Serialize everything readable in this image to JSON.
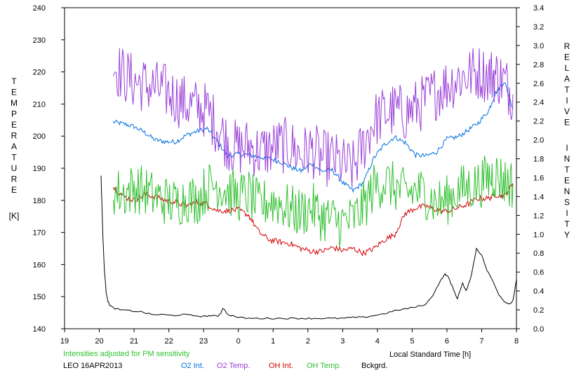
{
  "chart_data": {
    "type": "line",
    "y_left_label_letters": [
      "T",
      "E",
      "M",
      "P",
      "E",
      "R",
      "A",
      "T",
      "U",
      "R",
      "E"
    ],
    "y_left_unit": "[K]",
    "y_right_label_letters_1": [
      "R",
      "E",
      "L",
      "A",
      "T",
      "I",
      "V",
      "E"
    ],
    "y_right_label_letters_2": [
      "I",
      "N",
      "T",
      "E",
      "N",
      "S",
      "I",
      "T",
      "Y"
    ],
    "xlabel": "Local Standard Time [h]",
    "note": "Intensities adjusted for PM sensitivity",
    "station_date": "LEO 16APR2013",
    "ylim_left": [
      140,
      240
    ],
    "ylim_right": [
      0.0,
      3.4
    ],
    "y_left_ticks": [
      "140",
      "150",
      "160",
      "170",
      "180",
      "190",
      "200",
      "210",
      "220",
      "230",
      "240"
    ],
    "y_right_ticks": [
      "0.0",
      "0.2",
      "0.4",
      "0.6",
      "0.8",
      "1.0",
      "1.2",
      "1.4",
      "1.6",
      "1.8",
      "2.0",
      "2.2",
      "2.4",
      "2.6",
      "2.8",
      "3.0",
      "3.2",
      "3.4"
    ],
    "x_ticks": [
      "19",
      "20",
      "21",
      "22",
      "23",
      "0",
      "1",
      "2",
      "3",
      "4",
      "5",
      "6",
      "7",
      "8"
    ],
    "x_range": [
      19,
      32
    ],
    "series": [
      {
        "name": "O2 Int.",
        "color": "#0070e0",
        "axis": "right",
        "x": [
          20.4,
          20.7,
          21.0,
          21.3,
          21.6,
          21.9,
          22.2,
          22.5,
          22.8,
          23.1,
          23.4,
          23.7,
          24.0,
          24.3,
          24.6,
          24.9,
          25.2,
          25.5,
          25.8,
          26.1,
          26.4,
          26.7,
          27.0,
          27.3,
          27.6,
          27.9,
          28.2,
          28.5,
          28.8,
          29.1,
          29.4,
          29.7,
          30.0,
          30.3,
          30.6,
          30.9,
          31.2,
          31.4,
          31.65,
          31.9
        ],
        "values": [
          2.19,
          2.17,
          2.14,
          2.08,
          2.0,
          1.98,
          1.98,
          2.05,
          2.09,
          2.12,
          1.98,
          1.83,
          1.85,
          1.84,
          1.82,
          1.8,
          1.77,
          1.71,
          1.67,
          1.75,
          1.67,
          1.68,
          1.55,
          1.46,
          1.55,
          1.81,
          1.95,
          2.03,
          1.97,
          1.84,
          1.83,
          1.87,
          2.01,
          2.03,
          2.1,
          2.18,
          2.31,
          2.5,
          2.62,
          2.33
        ]
      },
      {
        "name": "O2 Temp.",
        "color": "#9a40d8",
        "axis": "left",
        "x": [
          20.4,
          20.7,
          21.0,
          21.3,
          21.6,
          21.9,
          22.2,
          22.5,
          22.8,
          23.1,
          23.4,
          23.7,
          24.0,
          24.3,
          24.6,
          24.9,
          25.2,
          25.5,
          25.8,
          26.1,
          26.4,
          26.7,
          27.0,
          27.3,
          27.6,
          27.9,
          28.2,
          28.5,
          28.8,
          29.1,
          29.4,
          29.7,
          30.0,
          30.3,
          30.6,
          30.9,
          31.2,
          31.4,
          31.65,
          31.9
        ],
        "values": [
          222,
          219,
          217,
          216,
          215,
          214,
          212,
          210,
          209,
          208,
          203,
          198,
          196,
          197,
          195,
          196,
          197,
          197,
          194,
          196,
          193,
          193,
          191,
          190,
          197,
          205,
          207,
          208,
          207,
          209,
          211,
          214,
          216,
          218,
          219,
          220,
          219,
          219,
          217,
          213
        ]
      },
      {
        "name": "OH Int.",
        "color": "#d40000",
        "axis": "right",
        "x": [
          20.4,
          20.7,
          21.0,
          21.3,
          21.6,
          21.9,
          22.2,
          22.5,
          22.8,
          23.1,
          23.4,
          23.7,
          24.0,
          24.3,
          24.6,
          24.9,
          25.2,
          25.5,
          25.8,
          26.1,
          26.4,
          26.7,
          27.0,
          27.3,
          27.6,
          27.9,
          28.2,
          28.5,
          28.8,
          29.1,
          29.4,
          29.7,
          30.0,
          30.3,
          30.6,
          30.9,
          31.2,
          31.4,
          31.65,
          31.9
        ],
        "values": [
          1.5,
          1.4,
          1.36,
          1.42,
          1.4,
          1.36,
          1.34,
          1.3,
          1.34,
          1.32,
          1.25,
          1.25,
          1.26,
          1.2,
          1.02,
          0.94,
          0.92,
          0.9,
          0.85,
          0.82,
          0.82,
          0.86,
          0.83,
          0.85,
          0.8,
          0.85,
          0.94,
          1.0,
          1.22,
          1.28,
          1.3,
          1.26,
          1.24,
          1.28,
          1.32,
          1.38,
          1.38,
          1.42,
          1.4,
          1.54
        ]
      },
      {
        "name": "OH Temp.",
        "color": "#30c030",
        "axis": "left",
        "x": [
          20.4,
          20.7,
          21.0,
          21.3,
          21.6,
          21.9,
          22.2,
          22.5,
          22.8,
          23.1,
          23.4,
          23.7,
          24.0,
          24.3,
          24.6,
          24.9,
          25.2,
          25.5,
          25.8,
          26.1,
          26.4,
          26.7,
          27.0,
          27.3,
          27.6,
          27.9,
          28.2,
          28.5,
          28.8,
          29.1,
          29.4,
          29.7,
          30.0,
          30.3,
          30.6,
          30.9,
          31.2,
          31.4,
          31.65,
          31.9
        ],
        "values": [
          183,
          182,
          184,
          183,
          181,
          180,
          179,
          181,
          180,
          184,
          185,
          183,
          181,
          182,
          178,
          180,
          179,
          177,
          176,
          178,
          175,
          174,
          173,
          174,
          178,
          184,
          186,
          184,
          182,
          183,
          182,
          179,
          180,
          183,
          184,
          185,
          187,
          188,
          186,
          185
        ]
      },
      {
        "name": "Bckgrd.",
        "color": "#000000",
        "axis": "right",
        "x": [
          20.05,
          20.1,
          20.15,
          20.2,
          20.25,
          20.3,
          20.4,
          20.6,
          20.9,
          21.2,
          21.5,
          21.8,
          22.1,
          22.4,
          22.7,
          23.0,
          23.2,
          23.4,
          23.5,
          23.55,
          23.7,
          24.0,
          24.3,
          24.6,
          24.9,
          25.2,
          25.5,
          25.8,
          26.1,
          26.4,
          26.7,
          27.0,
          27.3,
          27.6,
          27.9,
          28.2,
          28.5,
          28.8,
          29.1,
          29.4,
          29.6,
          29.8,
          29.95,
          30.05,
          30.15,
          30.3,
          30.45,
          30.55,
          30.7,
          30.85,
          31.0,
          31.15,
          31.3,
          31.5,
          31.65,
          31.8,
          31.9,
          32.0
        ],
        "values": [
          1.62,
          1.0,
          0.6,
          0.38,
          0.29,
          0.25,
          0.22,
          0.2,
          0.19,
          0.18,
          0.15,
          0.15,
          0.14,
          0.15,
          0.14,
          0.13,
          0.14,
          0.13,
          0.17,
          0.22,
          0.15,
          0.12,
          0.11,
          0.11,
          0.11,
          0.11,
          0.11,
          0.11,
          0.11,
          0.11,
          0.11,
          0.11,
          0.12,
          0.12,
          0.14,
          0.16,
          0.19,
          0.21,
          0.23,
          0.26,
          0.36,
          0.5,
          0.58,
          0.54,
          0.45,
          0.32,
          0.48,
          0.4,
          0.56,
          0.85,
          0.78,
          0.62,
          0.52,
          0.36,
          0.29,
          0.26,
          0.3,
          0.52
        ]
      }
    ]
  }
}
